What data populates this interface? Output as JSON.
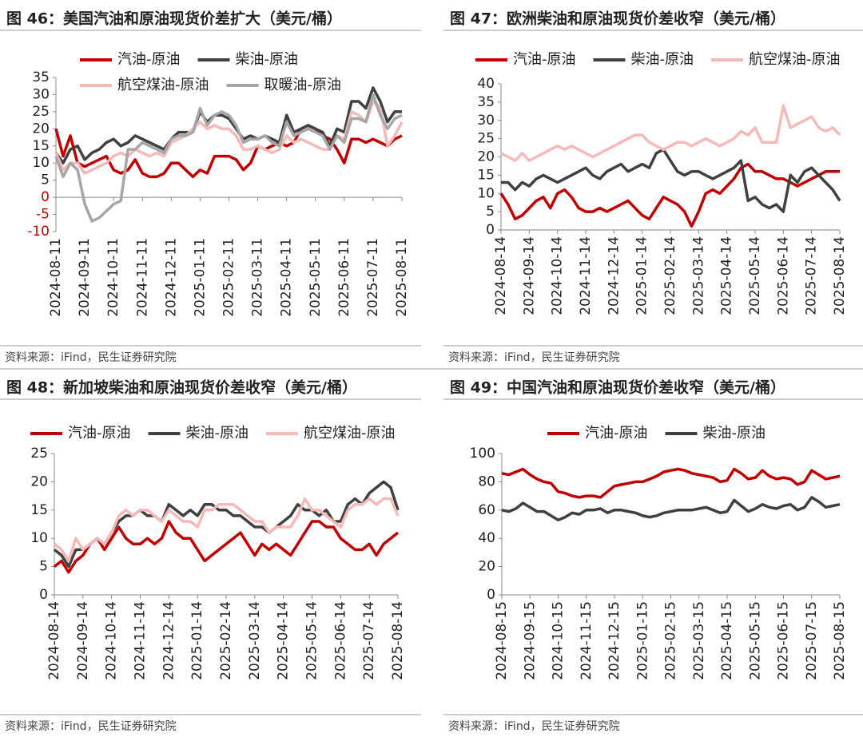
{
  "chart_data": [
    {
      "type": "line",
      "title": "图 46：美国汽油和原油现货价差扩大（美元/桶）",
      "source": "资料来源：iFind，民生证券研究院",
      "categories": [
        "2024-08-11",
        null,
        null,
        null,
        "2024-09-11",
        null,
        null,
        null,
        "2024-10-11",
        null,
        null,
        null,
        "2024-11-11",
        null,
        null,
        null,
        "2024-12-11",
        null,
        null,
        null,
        "2025-01-11",
        null,
        null,
        null,
        "2025-02-11",
        null,
        null,
        null,
        "2025-03-11",
        null,
        null,
        null,
        "2025-04-11",
        null,
        null,
        null,
        "2025-05-11",
        null,
        null,
        null,
        "2025-06-11",
        null,
        null,
        null,
        "2025-07-11",
        null,
        null,
        null,
        "2025-08-11"
      ],
      "series": [
        {
          "name": "汽油-原油",
          "color": "#c00000",
          "values": [
            20,
            12,
            18,
            10,
            9,
            10,
            11,
            12,
            8,
            7,
            8,
            11,
            7,
            6,
            6,
            7,
            10,
            10,
            8,
            6,
            8,
            7,
            12,
            12,
            12,
            11,
            8,
            10,
            15,
            14,
            15,
            16,
            15,
            16,
            20,
            21,
            20,
            18,
            17,
            14,
            10,
            17,
            17,
            16,
            17,
            16,
            15,
            17,
            18
          ]
        },
        {
          "name": "柴油-原油",
          "color": "#404040",
          "values": [
            13,
            10,
            14,
            15,
            11,
            13,
            14,
            16,
            17,
            15,
            16,
            18,
            17,
            16,
            15,
            14,
            17,
            19,
            19,
            19,
            25,
            22,
            24,
            24,
            23,
            20,
            17,
            18,
            17,
            18,
            17,
            16,
            24,
            19,
            20,
            21,
            20,
            19,
            15,
            20,
            19,
            28,
            28,
            26,
            32,
            28,
            22,
            25,
            25
          ]
        },
        {
          "name": "航空煤油-原油",
          "color": "#f4b9b9",
          "values": [
            13,
            8,
            10,
            10,
            7,
            8,
            9,
            10,
            12,
            13,
            12,
            14,
            13,
            12,
            13,
            12,
            16,
            17,
            18,
            20,
            22,
            20,
            21,
            20,
            20,
            18,
            14,
            14,
            15,
            14,
            13,
            14,
            18,
            16,
            17,
            16,
            15,
            14,
            14,
            18,
            17,
            25,
            24,
            22,
            28,
            26,
            15,
            18,
            22
          ]
        },
        {
          "name": "取暖油-原油",
          "color": "#a6a6a6",
          "values": [
            12,
            6,
            10,
            8,
            -2,
            -7,
            -6,
            -4,
            -2,
            -1,
            14,
            14,
            16,
            15,
            14,
            13,
            17,
            18,
            18,
            19,
            26,
            21,
            24,
            25,
            24,
            21,
            16,
            17,
            17,
            18,
            16,
            15,
            22,
            18,
            19,
            20,
            19,
            18,
            14,
            18,
            16,
            23,
            23,
            22,
            30,
            24,
            20,
            23,
            24
          ]
        }
      ],
      "ylim": [
        -10,
        35
      ],
      "yticks": [
        -10,
        -5,
        0,
        5,
        10,
        15,
        20,
        25,
        30,
        35
      ]
    },
    {
      "type": "line",
      "title": "图 47：欧洲柴油和原油现货价差收窄（美元/桶）",
      "source": "资料来源：iFind，民生证券研究院",
      "categories": [
        "2024-08-14",
        null,
        null,
        null,
        "2024-09-14",
        null,
        null,
        null,
        "2024-10-14",
        null,
        null,
        null,
        "2024-11-14",
        null,
        null,
        null,
        "2024-12-14",
        null,
        null,
        null,
        "2025-01-14",
        null,
        null,
        null,
        "2025-02-14",
        null,
        null,
        null,
        "2025-03-14",
        null,
        null,
        null,
        "2025-04-14",
        null,
        null,
        null,
        "2025-05-14",
        null,
        null,
        null,
        "2025-06-14",
        null,
        null,
        null,
        "2025-07-14",
        null,
        null,
        null,
        "2025-08-14"
      ],
      "series": [
        {
          "name": "汽油-原油",
          "color": "#c00000",
          "values": [
            10,
            7,
            3,
            4,
            6,
            8,
            9,
            6,
            10,
            11,
            9,
            6,
            5,
            5,
            6,
            5,
            6,
            7,
            8,
            6,
            4,
            3,
            6,
            9,
            8,
            7,
            5,
            1,
            5,
            10,
            11,
            10,
            12,
            14,
            17,
            18,
            16,
            16,
            15,
            14,
            14,
            13,
            12,
            13,
            14,
            15,
            16,
            16,
            16
          ]
        },
        {
          "name": "柴油-原油",
          "color": "#404040",
          "values": [
            13,
            13,
            11,
            13,
            12,
            14,
            15,
            14,
            13,
            14,
            15,
            16,
            17,
            15,
            14,
            16,
            17,
            18,
            16,
            17,
            18,
            17,
            21,
            22,
            19,
            16,
            15,
            16,
            16,
            15,
            14,
            15,
            16,
            17,
            19,
            8,
            9,
            7,
            6,
            7,
            5,
            15,
            13,
            16,
            17,
            15,
            13,
            11,
            8
          ]
        },
        {
          "name": "航空煤油-原油",
          "color": "#f4b9b9",
          "values": [
            21,
            20,
            19,
            21,
            19,
            20,
            21,
            22,
            23,
            22,
            23,
            22,
            21,
            20,
            21,
            22,
            23,
            24,
            25,
            26,
            26,
            24,
            23,
            22,
            23,
            24,
            24,
            23,
            24,
            25,
            24,
            23,
            24,
            25,
            27,
            26,
            28,
            24,
            24,
            24,
            34,
            28,
            29,
            30,
            31,
            28,
            27,
            28,
            26
          ]
        }
      ],
      "ylim": [
        0,
        40
      ],
      "yticks": [
        0,
        5,
        10,
        15,
        20,
        25,
        30,
        35,
        40
      ]
    },
    {
      "type": "line",
      "title": "图 48：新加坡柴油和原油现货价差收窄（美元/桶）",
      "source": "资料来源：iFind，民生证券研究院",
      "categories": [
        "2024-08-14",
        null,
        null,
        null,
        "2024-09-14",
        null,
        null,
        null,
        "2024-10-14",
        null,
        null,
        null,
        "2024-11-14",
        null,
        null,
        null,
        "2024-12-14",
        null,
        null,
        null,
        "2025-01-14",
        null,
        null,
        null,
        "2025-02-14",
        null,
        null,
        null,
        "2025-03-14",
        null,
        null,
        null,
        "2025-04-14",
        null,
        null,
        null,
        "2025-05-14",
        null,
        null,
        null,
        "2025-06-14",
        null,
        null,
        null,
        "2025-07-14",
        null,
        null,
        null,
        "2025-08-14"
      ],
      "series": [
        {
          "name": "汽油-原油",
          "color": "#c00000",
          "values": [
            5,
            6,
            4,
            6,
            7,
            9,
            10,
            8,
            10,
            12,
            10,
            9,
            9,
            10,
            9,
            10,
            13,
            11,
            10,
            10,
            8,
            6,
            7,
            8,
            9,
            10,
            11,
            9,
            7,
            9,
            8,
            9,
            8,
            7,
            9,
            11,
            13,
            13,
            12,
            12,
            10,
            9,
            8,
            8,
            9,
            7,
            9,
            10,
            11
          ]
        },
        {
          "name": "柴油-原油",
          "color": "#404040",
          "values": [
            8,
            7,
            5,
            8,
            8,
            9,
            10,
            9,
            11,
            13,
            14,
            14,
            15,
            14,
            14,
            13,
            16,
            15,
            14,
            15,
            14,
            16,
            16,
            15,
            15,
            14,
            14,
            13,
            12,
            12,
            11,
            12,
            13,
            14,
            16,
            15,
            15,
            14,
            15,
            13,
            13,
            16,
            17,
            16,
            18,
            19,
            20,
            19,
            15
          ]
        },
        {
          "name": "航空煤油-原油",
          "color": "#f4b9b9",
          "values": [
            9,
            8,
            6,
            10,
            8,
            9,
            10,
            9,
            11,
            14,
            15,
            14,
            15,
            15,
            14,
            13,
            15,
            14,
            13,
            13,
            12,
            15,
            15,
            16,
            16,
            16,
            15,
            14,
            13,
            13,
            11,
            12,
            12,
            12,
            14,
            17,
            15,
            15,
            14,
            13,
            12,
            15,
            16,
            16,
            17,
            16,
            17,
            17,
            14
          ]
        }
      ],
      "ylim": [
        0,
        25
      ],
      "yticks": [
        0,
        5,
        10,
        15,
        20,
        25
      ]
    },
    {
      "type": "line",
      "title": "图 49：中国汽油和原油现货价差收窄（美元/桶）",
      "source": "资料来源：iFind，民生证券研究院",
      "categories": [
        "2024-08-15",
        null,
        null,
        null,
        "2024-09-15",
        null,
        null,
        null,
        "2024-10-15",
        null,
        null,
        null,
        "2024-11-15",
        null,
        null,
        null,
        "2024-12-15",
        null,
        null,
        null,
        "2025-01-15",
        null,
        null,
        null,
        "2025-02-15",
        null,
        null,
        null,
        "2025-03-15",
        null,
        null,
        null,
        "2025-04-15",
        null,
        null,
        null,
        "2025-05-15",
        null,
        null,
        null,
        "2025-06-15",
        null,
        null,
        null,
        "2025-07-15",
        null,
        null,
        null,
        "2025-08-15"
      ],
      "series": [
        {
          "name": "汽油-原油",
          "color": "#c00000",
          "values": [
            86,
            85,
            87,
            89,
            85,
            82,
            80,
            79,
            73,
            72,
            70,
            69,
            70,
            70,
            69,
            73,
            77,
            78,
            79,
            80,
            80,
            82,
            84,
            87,
            88,
            89,
            88,
            86,
            85,
            84,
            83,
            80,
            81,
            89,
            86,
            82,
            83,
            88,
            84,
            82,
            83,
            82,
            78,
            80,
            88,
            85,
            82,
            83,
            84
          ]
        },
        {
          "name": "柴油-原油",
          "color": "#404040",
          "values": [
            60,
            59,
            61,
            65,
            62,
            59,
            59,
            56,
            53,
            55,
            58,
            57,
            60,
            60,
            61,
            58,
            60,
            60,
            59,
            58,
            56,
            55,
            56,
            58,
            59,
            60,
            60,
            60,
            61,
            62,
            60,
            58,
            59,
            67,
            63,
            59,
            61,
            64,
            62,
            61,
            63,
            64,
            60,
            62,
            69,
            66,
            62,
            63,
            64
          ]
        }
      ],
      "ylim": [
        0,
        100
      ],
      "yticks": [
        0,
        20,
        40,
        60,
        80,
        100
      ]
    }
  ]
}
